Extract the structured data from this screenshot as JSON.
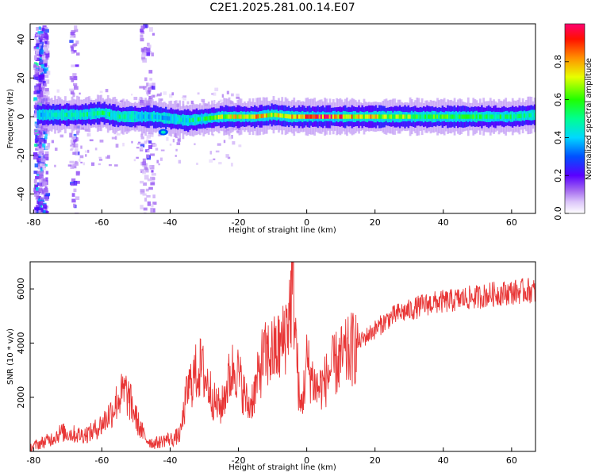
{
  "title": "C2E1.2025.281.00.14.E07",
  "chart_data": [
    {
      "type": "heatmap",
      "xlabel": "Height of straight line (km)",
      "ylabel": "Frequency (Hz)",
      "xlim": [
        -81,
        67
      ],
      "ylim": [
        -50,
        48
      ],
      "xticks": [
        -80,
        -60,
        -40,
        -20,
        0,
        20,
        40,
        60
      ],
      "yticks": [
        -40,
        -20,
        0,
        20,
        40
      ],
      "ridge": {
        "description": "dominant frequency ridge near 0 Hz",
        "x": [
          -77,
          -72,
          -66,
          -60,
          -55,
          -50,
          -45,
          -40,
          -35,
          -30,
          -25,
          -20,
          -15,
          -10,
          -5,
          0,
          5,
          10,
          20,
          30,
          40,
          50,
          60,
          67
        ],
        "y": [
          1,
          1,
          1,
          2,
          0,
          0,
          0,
          -1,
          -2,
          -1,
          0,
          0,
          0,
          1,
          0,
          0,
          0,
          0,
          0,
          0,
          0,
          0,
          0,
          1
        ],
        "amplitude": [
          0.45,
          0.5,
          0.5,
          0.55,
          0.5,
          0.45,
          0.45,
          0.4,
          0.5,
          0.55,
          0.7,
          0.85,
          0.8,
          0.75,
          0.8,
          0.95,
          0.95,
          0.9,
          0.75,
          0.65,
          0.6,
          0.6,
          0.55,
          0.5
        ]
      },
      "colorbar": {
        "label": "Normalized spectral amplitude",
        "range": [
          0,
          1
        ],
        "ticks": [
          "0.0",
          "0.2",
          "0.4",
          "0.6",
          "0.8"
        ],
        "colors": [
          "#ffffff",
          "#c9a6f7",
          "#8a2be2",
          "#3a00ff",
          "#0080ff",
          "#00e5ff",
          "#00ff80",
          "#40ff00",
          "#ffff00",
          "#ff8000",
          "#ff0000",
          "#ff0060"
        ]
      }
    },
    {
      "type": "line",
      "xlabel": "Height of straight line (km)",
      "ylabel": "SNR (10 * v/v)",
      "xlim": [
        -81,
        67
      ],
      "ylim": [
        0,
        7000
      ],
      "xticks": [
        -80,
        -60,
        -40,
        -20,
        0,
        20,
        40,
        60
      ],
      "yticks": [
        2000,
        4000,
        6000
      ],
      "series": [
        {
          "name": "SNR",
          "color": "#e83535",
          "x": [
            -81,
            -78,
            -75,
            -72,
            -69,
            -66,
            -63,
            -60,
            -57,
            -55,
            -53,
            -51,
            -49,
            -47,
            -45,
            -43,
            -41,
            -39,
            -37,
            -35,
            -33,
            -31,
            -29,
            -27,
            -25,
            -23,
            -21,
            -19,
            -17,
            -15,
            -13,
            -11,
            -9,
            -7,
            -5,
            -4,
            -3,
            -2,
            -1,
            0,
            1,
            2,
            3,
            5,
            7,
            9,
            12,
            15,
            18,
            21,
            24,
            27,
            30,
            34,
            38,
            42,
            46,
            50,
            54,
            58,
            62,
            65,
            67
          ],
          "values": [
            150,
            300,
            450,
            700,
            650,
            600,
            700,
            1000,
            1500,
            2000,
            2200,
            1600,
            900,
            450,
            300,
            350,
            450,
            450,
            650,
            2200,
            2800,
            3100,
            2500,
            1800,
            1600,
            2600,
            3200,
            2400,
            1600,
            2300,
            3400,
            3600,
            3700,
            4000,
            5200,
            6300,
            3800,
            1500,
            2100,
            3300,
            2900,
            2600,
            2300,
            2500,
            3000,
            3300,
            3600,
            4000,
            4300,
            4600,
            4900,
            5100,
            5200,
            5400,
            5500,
            5550,
            5650,
            5700,
            5800,
            5850,
            5900,
            5950,
            5900
          ]
        }
      ]
    }
  ]
}
